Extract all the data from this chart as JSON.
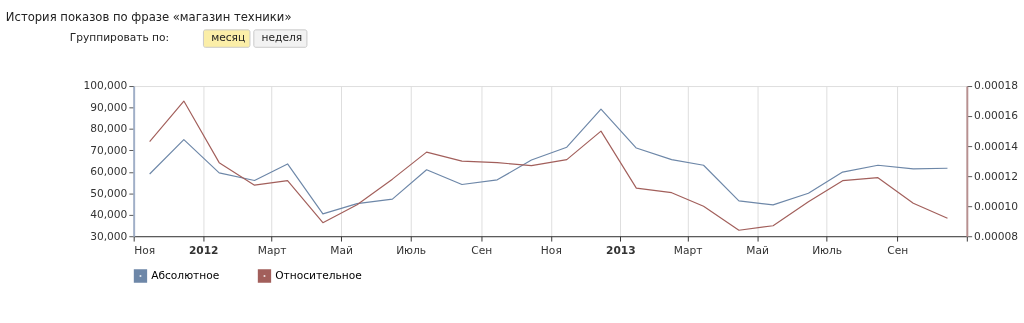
{
  "chart_data": {
    "type": "line",
    "title": "История показов по фразе «магазин техники»",
    "annotations": [
      "Группировать по:",
      "месяц",
      "неделя"
    ],
    "x": [
      "2011-11-15",
      "2011-12-15",
      "2012-01-15",
      "2012-02-15",
      "2012-03-15",
      "2012-04-15",
      "2012-05-15",
      "2012-06-15",
      "2012-07-15",
      "2012-08-15",
      "2012-09-15",
      "2012-10-15",
      "2012-11-15",
      "2012-12-15",
      "2013-01-15",
      "2013-02-15",
      "2013-03-15",
      "2013-04-15",
      "2013-05-15",
      "2013-06-15",
      "2013-07-15",
      "2013-08-15",
      "2013-09-15",
      "2013-10-15"
    ],
    "series": [
      {
        "name": "Абсолютное",
        "color": "#6d87a8",
        "values": [
          59000,
          75000,
          59500,
          56000,
          63700,
          40400,
          45200,
          47300,
          61000,
          54100,
          56300,
          65500,
          71500,
          89200,
          71100,
          65700,
          63100,
          46500,
          44600,
          50000,
          59900,
          63100,
          61400,
          61700
        ]
      },
      {
        "name": "Относительное",
        "color": "#a25f5b",
        "axis": "y2",
        "values": [
          0.000143,
          0.00017,
          0.000129,
          0.000114,
          0.000117,
          8.9e-05,
          0.000101,
          0.000118,
          0.000136,
          0.00013,
          0.000129,
          0.000127,
          0.000131,
          0.00015,
          0.000112,
          0.000109,
          0.0001,
          8.4e-05,
          8.7e-05,
          0.000103,
          0.000117,
          0.000119,
          0.000102,
          9.2e-05
        ]
      }
    ],
    "xlim": [
      "2011-11-01",
      "2013-11-01"
    ],
    "xticks": [
      {
        "value": "2011-11-01",
        "label": "Ноя"
      },
      {
        "value": "2012-01-01",
        "label": "2012"
      },
      {
        "value": "2012-03-01",
        "label": "Март"
      },
      {
        "value": "2012-05-01",
        "label": "Май"
      },
      {
        "value": "2012-07-01",
        "label": "Июль"
      },
      {
        "value": "2012-09-01",
        "label": "Сен"
      },
      {
        "value": "2012-11-01",
        "label": "Ноя"
      },
      {
        "value": "2013-01-01",
        "label": "2013"
      },
      {
        "value": "2013-03-01",
        "label": "Март"
      },
      {
        "value": "2013-05-01",
        "label": "Май"
      },
      {
        "value": "2013-07-01",
        "label": "Июль"
      },
      {
        "value": "2013-09-01",
        "label": "Сен"
      },
      {
        "value": "2013-11-01",
        "label": null
      }
    ],
    "ylim": [
      30000,
      100000
    ],
    "yticks": [
      {
        "value": 30000,
        "label": "30,000"
      },
      {
        "value": 40000,
        "label": "40,000"
      },
      {
        "value": 50000,
        "label": "50,000"
      },
      {
        "value": 60000,
        "label": "60,000"
      },
      {
        "value": 70000,
        "label": "70,000"
      },
      {
        "value": 80000,
        "label": "80,000"
      },
      {
        "value": 90000,
        "label": "90,000"
      },
      {
        "value": 100000,
        "label": "100,000"
      }
    ],
    "y2lim": [
      8e-05,
      0.00018
    ],
    "y2ticks": [
      {
        "value": 8e-05,
        "label": "0.00008"
      },
      {
        "value": 0.0001,
        "label": "0.00010"
      },
      {
        "value": 0.00012,
        "label": "0.00012"
      },
      {
        "value": 0.00014,
        "label": "0.00014"
      },
      {
        "value": 0.00016,
        "label": "0.00016"
      },
      {
        "value": 0.00018,
        "label": "0.00018"
      }
    ],
    "grid": "x",
    "legend": "bottom left",
    "marker": "none",
    "line_style": "solid"
  }
}
